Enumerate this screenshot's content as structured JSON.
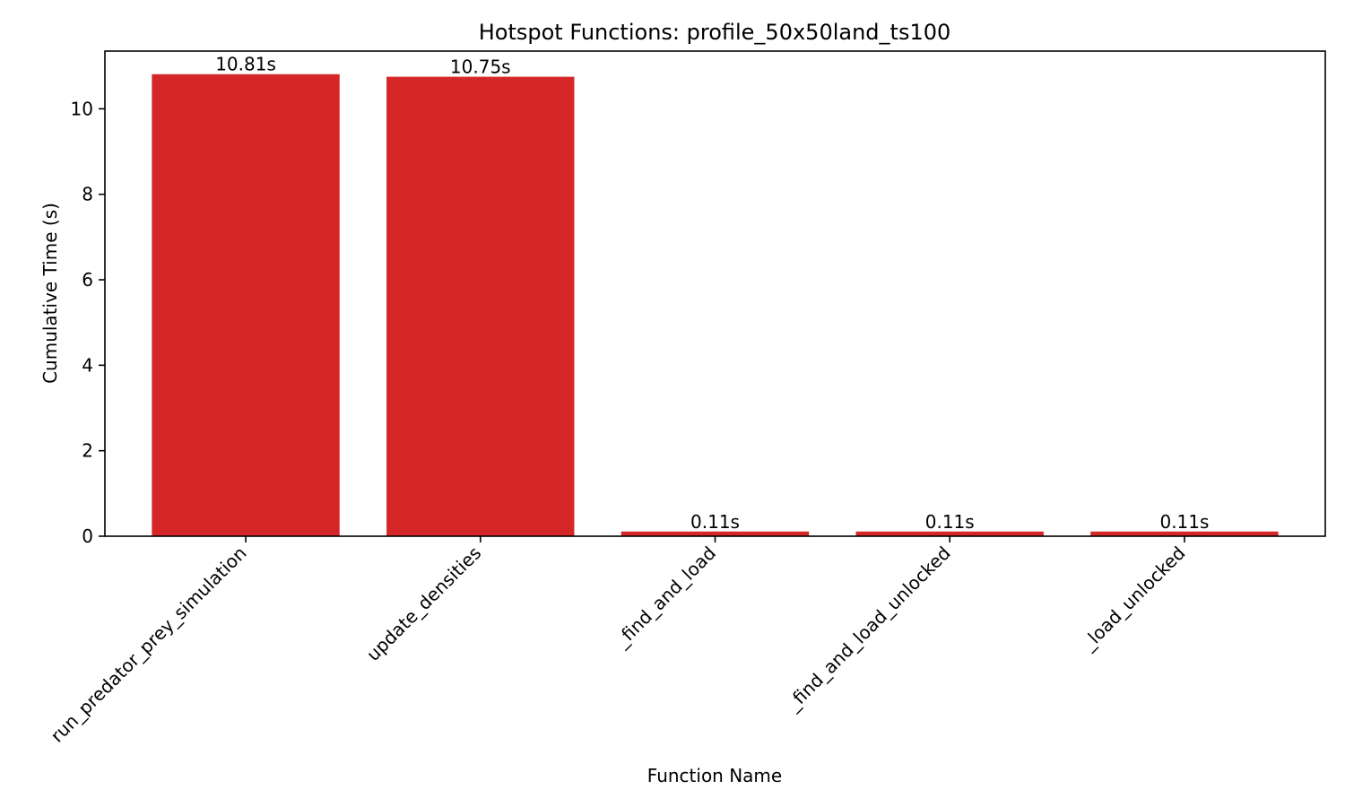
{
  "chart_data": {
    "type": "bar",
    "title": "Hotspot Functions: profile_50x50land_ts100",
    "xlabel": "Function Name",
    "ylabel": "Cumulative Time (s)",
    "categories": [
      "run_predator_prey_simulation",
      "update_densities",
      "_find_and_load",
      "_find_and_load_unlocked",
      "_load_unlocked"
    ],
    "values": [
      10.81,
      10.75,
      0.11,
      0.11,
      0.11
    ],
    "data_labels": [
      "10.81s",
      "10.75s",
      "0.11s",
      "0.11s",
      "0.11s"
    ],
    "ylim": [
      0,
      11.35
    ],
    "yticks": [
      0,
      2,
      4,
      6,
      8,
      10
    ],
    "ytick_labels": [
      "0",
      "2",
      "4",
      "6",
      "8",
      "10"
    ],
    "grid": false,
    "legend": "none",
    "bar_color": "#d62728"
  }
}
